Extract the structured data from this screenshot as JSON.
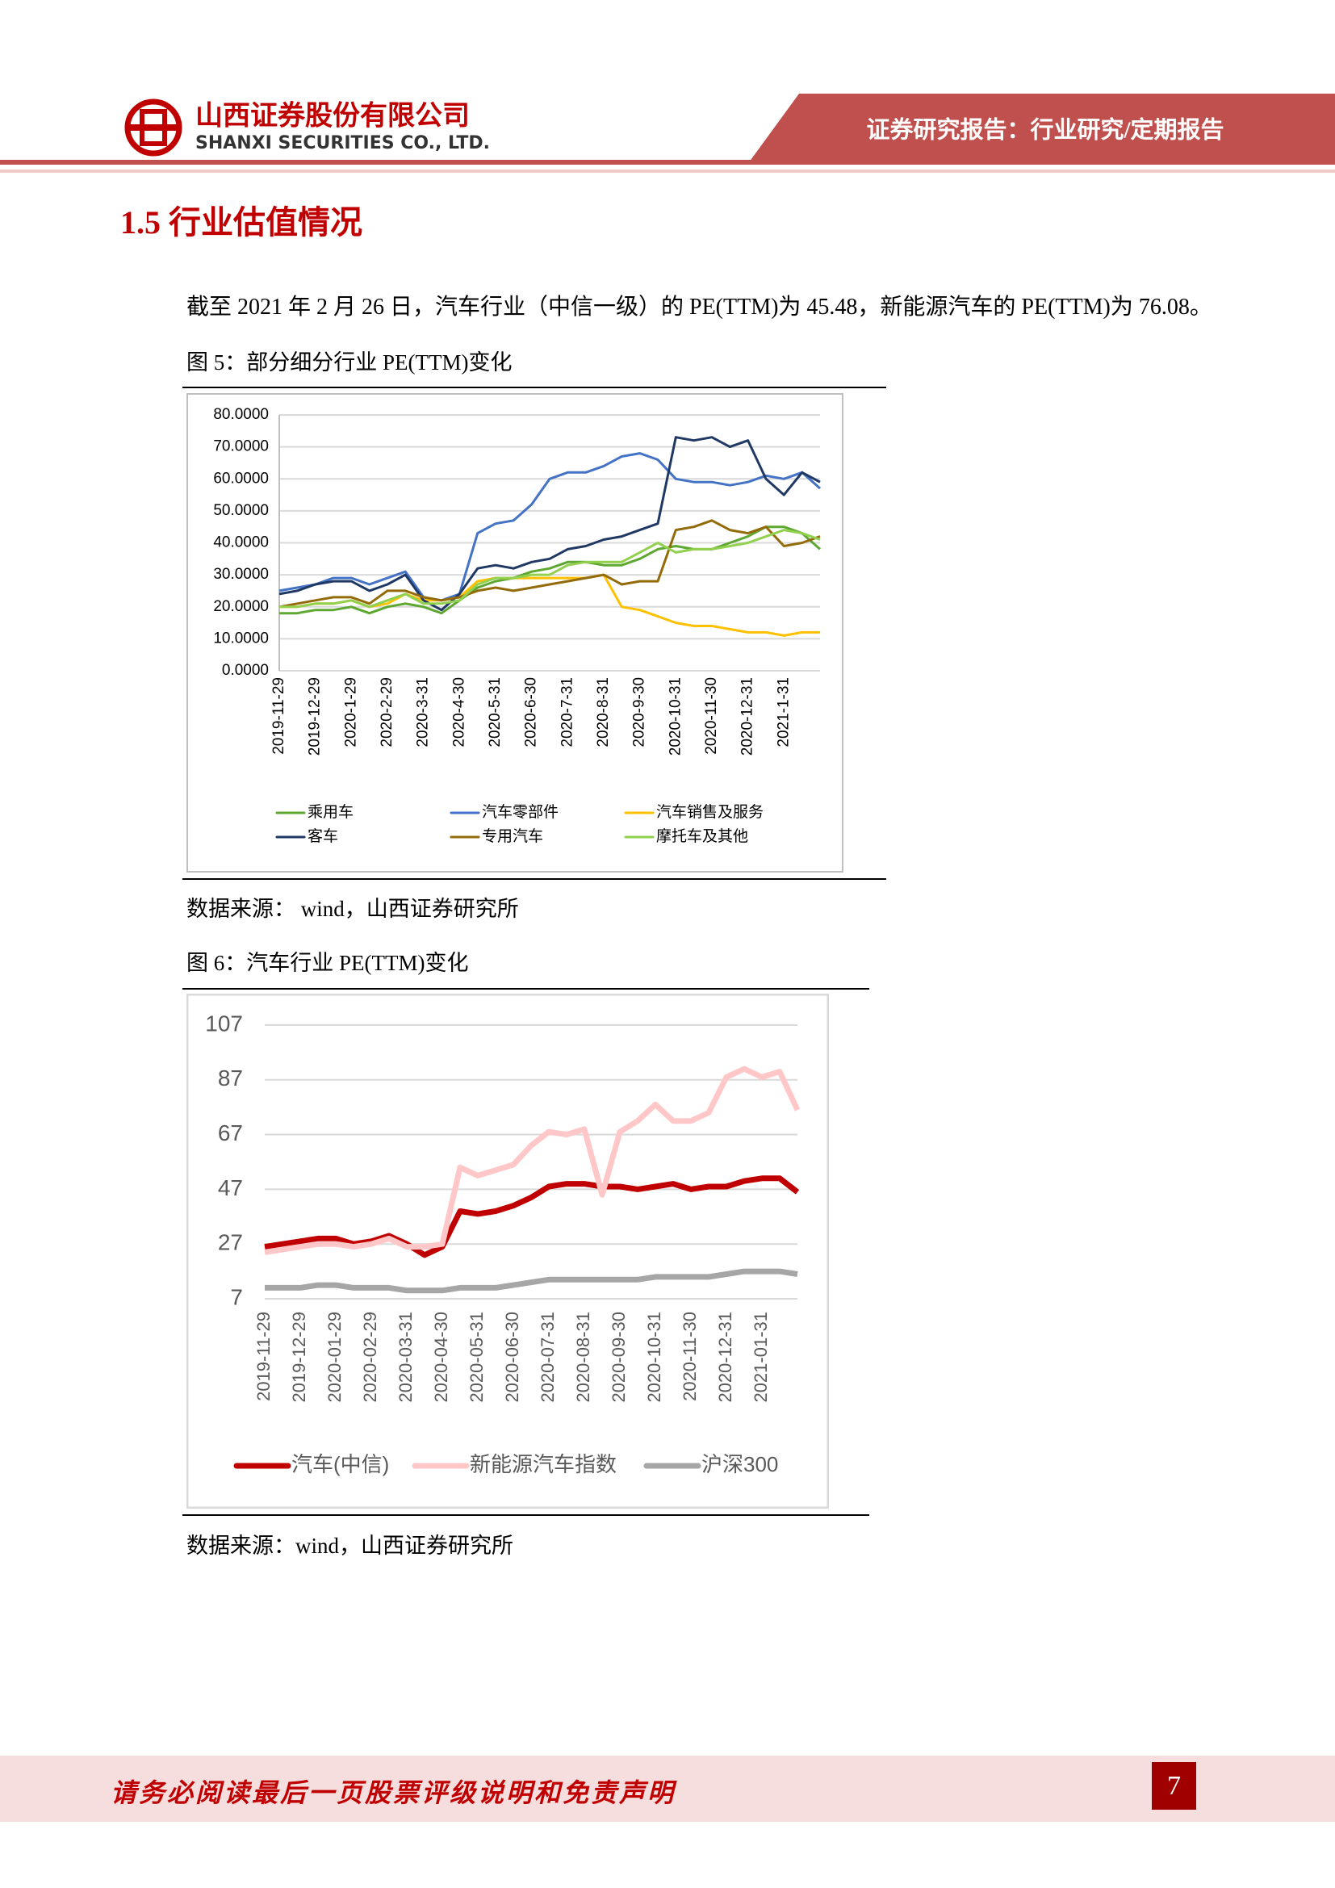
{
  "header": {
    "company_cn": "山西证券股份有限公司",
    "company_en": "SHANXI SECURITIES CO., LTD.",
    "report_type": "证券研究报告：行业研究/定期报告"
  },
  "section_title": "1.5 行业估值情况",
  "paragraph": "截至 2021 年 2 月 26 日，汽车行业（中信一级）的 PE(TTM)为 45.48，新能源汽车的 PE(TTM)为 76.08。",
  "figures": [
    {
      "caption": "图 5：部分细分行业 PE(TTM)变化",
      "source": "数据来源： wind，山西证券研究所"
    },
    {
      "caption": "图 6：汽车行业 PE(TTM)变化",
      "source": "数据来源：wind，山西证券研究所"
    }
  ],
  "footer": {
    "disclaimer": "请务必阅读最后一页股票评级说明和免责声明",
    "page_number": "7"
  },
  "chart_data": [
    {
      "type": "line",
      "categories": [
        "2019-11-29",
        null,
        "2019-12-29",
        null,
        "2020-1-29",
        null,
        "2020-2-29",
        null,
        "2020-3-31",
        null,
        "2020-4-30",
        null,
        "2020-5-31",
        null,
        "2020-6-30",
        null,
        "2020-7-31",
        null,
        "2020-8-31",
        null,
        "2020-9-30",
        null,
        "2020-10-31",
        null,
        "2020-11-30",
        null,
        "2020-12-31",
        null,
        "2021-1-31",
        null,
        null
      ],
      "ylim": [
        0,
        80
      ],
      "yticks": [
        {
          "value": 0,
          "label": "0.0000"
        },
        {
          "value": 10,
          "label": "10.0000"
        },
        {
          "value": 20,
          "label": "20.0000"
        },
        {
          "value": 30,
          "label": "30.0000"
        },
        {
          "value": 40,
          "label": "40.0000"
        },
        {
          "value": 50,
          "label": "50.0000"
        },
        {
          "value": 60,
          "label": "60.0000"
        },
        {
          "value": 70,
          "label": "70.0000"
        },
        {
          "value": 80,
          "label": "80.0000"
        }
      ],
      "grid": true,
      "legend": "bottom",
      "series": [
        {
          "name": "乘用车",
          "color": "#5ea832",
          "values": [
            18,
            18,
            19,
            19,
            20,
            18,
            20,
            21,
            20,
            18,
            22,
            26,
            28,
            29,
            31,
            32,
            34,
            34,
            33,
            33,
            35,
            38,
            39,
            38,
            38,
            40,
            42,
            45,
            45,
            43,
            38
          ]
        },
        {
          "name": "汽车零部件",
          "color": "#4472c4",
          "values": [
            25,
            26,
            27,
            29,
            29,
            27,
            29,
            31,
            23,
            22,
            24,
            43,
            46,
            47,
            52,
            60,
            62,
            62,
            64,
            67,
            68,
            66,
            60,
            59,
            59,
            58,
            59,
            61,
            60,
            62,
            57
          ]
        },
        {
          "name": "汽车销售及服务",
          "color": "#ffc000",
          "values": [
            20,
            20,
            21,
            21,
            22,
            20,
            21,
            24,
            22,
            22,
            23,
            28,
            29,
            29,
            29,
            29,
            29,
            29,
            30,
            20,
            19,
            17,
            15,
            14,
            14,
            13,
            12,
            12,
            11,
            12,
            12
          ]
        },
        {
          "name": "客车",
          "color": "#1f3864",
          "values": [
            24,
            25,
            27,
            28,
            28,
            25,
            27,
            30,
            22,
            19,
            24,
            32,
            33,
            32,
            34,
            35,
            38,
            39,
            41,
            42,
            44,
            46,
            73,
            72,
            73,
            70,
            72,
            60,
            55,
            62,
            59
          ]
        },
        {
          "name": "专用汽车",
          "color": "#946b0a",
          "values": [
            20,
            21,
            22,
            23,
            23,
            21,
            25,
            25,
            23,
            22,
            23,
            25,
            26,
            25,
            26,
            27,
            28,
            29,
            30,
            27,
            28,
            28,
            44,
            45,
            47,
            44,
            43,
            45,
            39,
            40,
            42
          ]
        },
        {
          "name": "摩托车及其他",
          "color": "#92d050",
          "values": [
            20,
            20,
            21,
            21,
            22,
            20,
            22,
            24,
            21,
            21,
            22,
            27,
            29,
            29,
            30,
            30,
            33,
            34,
            34,
            34,
            37,
            40,
            37,
            38,
            38,
            39,
            40,
            42,
            44,
            43,
            41
          ]
        }
      ]
    },
    {
      "type": "line",
      "categories": [
        "2019-11-29",
        null,
        "2019-12-29",
        null,
        "2020-01-29",
        null,
        "2020-02-29",
        null,
        "2020-03-31",
        null,
        "2020-04-30",
        null,
        "2020-05-31",
        null,
        "2020-06-30",
        null,
        "2020-07-31",
        null,
        "2020-08-31",
        null,
        "2020-09-30",
        null,
        "2020-10-31",
        null,
        "2020-11-30",
        null,
        "2020-12-31",
        null,
        "2021-01-31",
        null,
        null
      ],
      "ylim": [
        7,
        107
      ],
      "yticks": [
        7,
        27,
        47,
        67,
        87,
        107
      ],
      "grid": true,
      "legend": "bottom",
      "series": [
        {
          "name": "汽车(中信)",
          "color": "#c00000",
          "values": [
            26,
            27,
            28,
            29,
            29,
            27,
            28,
            30,
            27,
            23,
            26,
            39,
            38,
            39,
            41,
            44,
            48,
            49,
            49,
            48,
            48,
            47,
            48,
            49,
            47,
            48,
            48,
            50,
            51,
            51,
            46
          ]
        },
        {
          "name": "新能源汽车指数",
          "color": "#ffc7c7",
          "values": [
            24,
            25,
            26,
            27,
            27,
            26,
            27,
            29,
            26,
            26,
            27,
            55,
            52,
            54,
            56,
            63,
            68,
            67,
            69,
            45,
            68,
            72,
            78,
            72,
            72,
            75,
            88,
            91,
            88,
            90,
            76
          ]
        },
        {
          "name": "沪深300",
          "color": "#a6a6a6",
          "values": [
            11,
            11,
            11,
            12,
            12,
            11,
            11,
            11,
            10,
            10,
            10,
            11,
            11,
            11,
            12,
            13,
            14,
            14,
            14,
            14,
            14,
            14,
            15,
            15,
            15,
            15,
            16,
            17,
            17,
            17,
            16
          ]
        }
      ]
    }
  ]
}
